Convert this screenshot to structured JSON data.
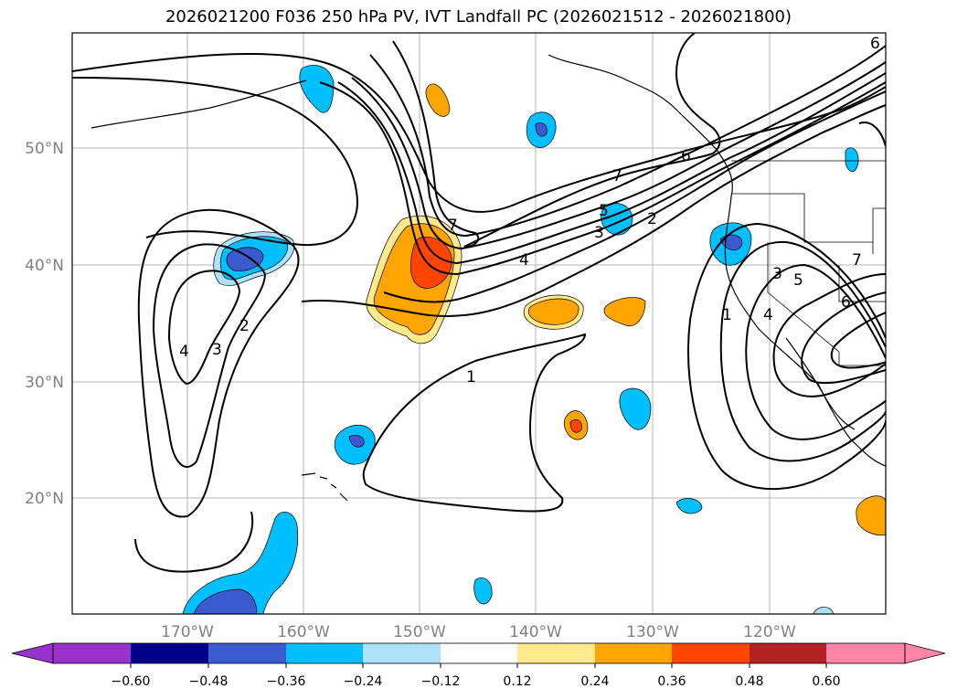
{
  "title": "2026021200 F036 250 hPa PV, IVT Landfall PC (2026021512 - 2026021800)",
  "map": {
    "lat_labels": [
      "50°N",
      "40°N",
      "30°N",
      "20°N"
    ],
    "lon_labels": [
      "170°W",
      "160°W",
      "150°W",
      "140°W",
      "130°W",
      "120°W"
    ],
    "contour_labels": [
      "1",
      "2",
      "3",
      "4",
      "5",
      "6",
      "7"
    ]
  },
  "colorbar": {
    "ticks": [
      "−0.60",
      "−0.48",
      "−0.36",
      "−0.24",
      "−0.12",
      "0.12",
      "0.24",
      "0.36",
      "0.48",
      "0.60"
    ],
    "colors": [
      "#9932CC",
      "#00008B",
      "#3A5BD0",
      "#00BFFF",
      "#ADE2FA",
      "#FFFFFF",
      "#FFE98A",
      "#FFA500",
      "#FF4500",
      "#B22222",
      "#FF85A8"
    ]
  }
}
